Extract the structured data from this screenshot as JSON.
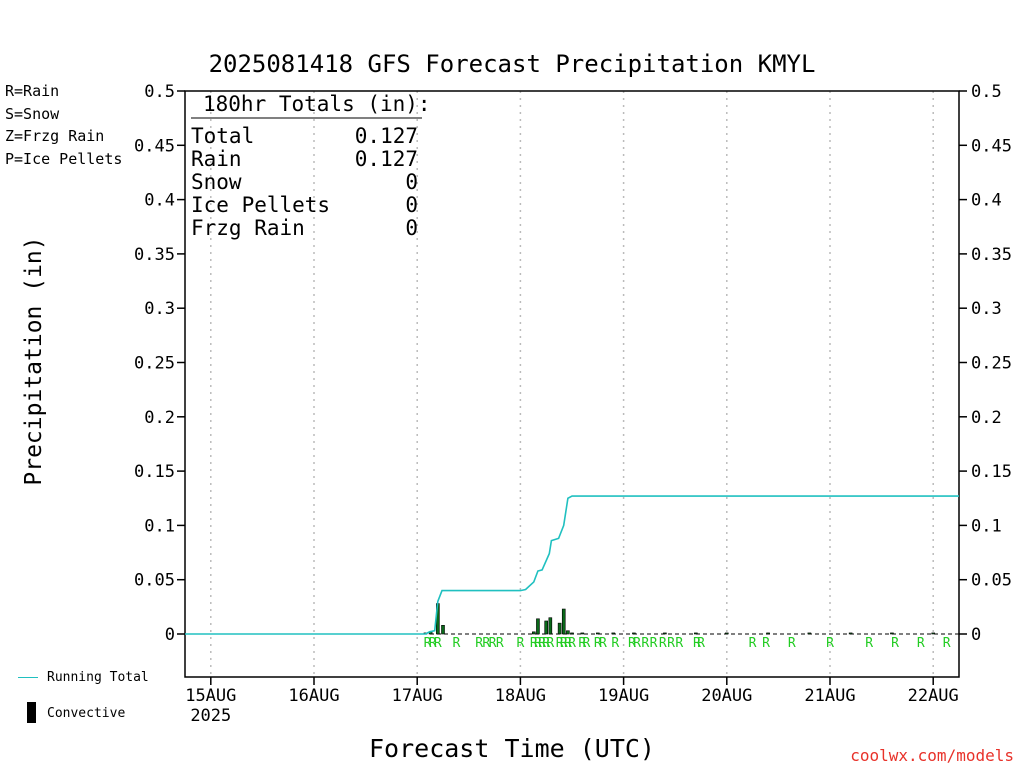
{
  "title": "2025081418 GFS Forecast Precipitation KMYL",
  "legend_types": [
    {
      "label": "R=Rain",
      "color": "#22cc22"
    },
    {
      "label": "S=Snow",
      "color": "#3a4bd8"
    },
    {
      "label": "Z=Frzg Rain",
      "color": "#f08a24"
    },
    {
      "label": "P=Ice Pellets",
      "color": "#e0208c"
    }
  ],
  "totals": {
    "header": "180hr Totals (in):",
    "rows": [
      {
        "label": "Total",
        "value": "0.127"
      },
      {
        "label": "Rain",
        "value": "0.127"
      },
      {
        "label": "Snow",
        "value": "0"
      },
      {
        "label": "Ice Pellets",
        "value": "0"
      },
      {
        "label": "Frzg Rain",
        "value": "0"
      }
    ]
  },
  "bottom_legend": {
    "running_total": "Running Total",
    "convective": "Convective"
  },
  "credit": "coolwx.com/models",
  "colors": {
    "running_total": "#20c0c0",
    "bars": "#0a6a1a",
    "rain_marker": "#22cc22",
    "grid": "#bbbbbb"
  },
  "chart_data": {
    "type": "bar",
    "title": "2025081418 GFS Forecast Precipitation KMYL",
    "xlabel": "Forecast Time (UTC)",
    "ylabel": "Precipitation (in)",
    "ylim": [
      0,
      0.5
    ],
    "xlim_days_from_15AUG": [
      -0.25,
      7.25
    ],
    "y_ticks": [
      "0",
      "0.05",
      "0.1",
      "0.15",
      "0.2",
      "0.25",
      "0.3",
      "0.35",
      "0.4",
      "0.45",
      "0.5"
    ],
    "x_ticks": [
      {
        "label": "15AUG",
        "sub": "2025",
        "day": 0
      },
      {
        "label": "16AUG",
        "sub": "",
        "day": 1
      },
      {
        "label": "17AUG",
        "sub": "",
        "day": 2
      },
      {
        "label": "18AUG",
        "sub": "",
        "day": 3
      },
      {
        "label": "19AUG",
        "sub": "",
        "day": 4
      },
      {
        "label": "20AUG",
        "sub": "",
        "day": 5
      },
      {
        "label": "21AUG",
        "sub": "",
        "day": 6
      },
      {
        "label": "22AUG",
        "sub": "",
        "day": 7
      }
    ],
    "grid": true,
    "series": [
      {
        "name": "Running Total",
        "type": "line",
        "points": [
          [
            -0.25,
            0
          ],
          [
            2.08,
            0
          ],
          [
            2.12,
            0.002
          ],
          [
            2.17,
            0.003
          ],
          [
            2.2,
            0.03
          ],
          [
            2.24,
            0.04
          ],
          [
            3.0,
            0.04
          ],
          [
            3.05,
            0.041
          ],
          [
            3.13,
            0.048
          ],
          [
            3.17,
            0.058
          ],
          [
            3.21,
            0.059
          ],
          [
            3.28,
            0.074
          ],
          [
            3.3,
            0.086
          ],
          [
            3.37,
            0.088
          ],
          [
            3.42,
            0.1
          ],
          [
            3.46,
            0.125
          ],
          [
            3.5,
            0.127
          ],
          [
            7.25,
            0.127
          ]
        ]
      },
      {
        "name": "Convective",
        "type": "bar",
        "points": [
          [
            2.08,
            0.001
          ],
          [
            2.13,
            0.002
          ],
          [
            2.2,
            0.028
          ],
          [
            2.25,
            0.008
          ],
          [
            3.13,
            0.002
          ],
          [
            3.17,
            0.014
          ],
          [
            3.25,
            0.012
          ],
          [
            3.29,
            0.015
          ],
          [
            3.38,
            0.01
          ],
          [
            3.42,
            0.023
          ],
          [
            3.46,
            0.003
          ],
          [
            3.5,
            0.001
          ],
          [
            3.6,
            0.001
          ],
          [
            3.75,
            0.001
          ],
          [
            3.9,
            0.001
          ],
          [
            4.1,
            0.001
          ],
          [
            4.4,
            0.001
          ],
          [
            4.7,
            0.001
          ],
          [
            5.0,
            0.001
          ],
          [
            5.4,
            0.001
          ],
          [
            5.8,
            0.001
          ],
          [
            6.2,
            0.001
          ],
          [
            6.6,
            0.001
          ],
          [
            7.0,
            0.001
          ]
        ]
      }
    ],
    "precip_type_markers": {
      "symbol": "R",
      "days": [
        2.1,
        2.15,
        2.2,
        2.38,
        2.6,
        2.67,
        2.73,
        2.8,
        3.0,
        3.13,
        3.17,
        3.21,
        3.25,
        3.29,
        3.38,
        3.42,
        3.46,
        3.5,
        3.6,
        3.64,
        3.75,
        3.8,
        3.92,
        4.08,
        4.13,
        4.21,
        4.29,
        4.38,
        4.46,
        4.54,
        4.71,
        4.75,
        5.25,
        5.38,
        5.63,
        6.0,
        6.38,
        6.63,
        6.88,
        7.13
      ]
    }
  }
}
